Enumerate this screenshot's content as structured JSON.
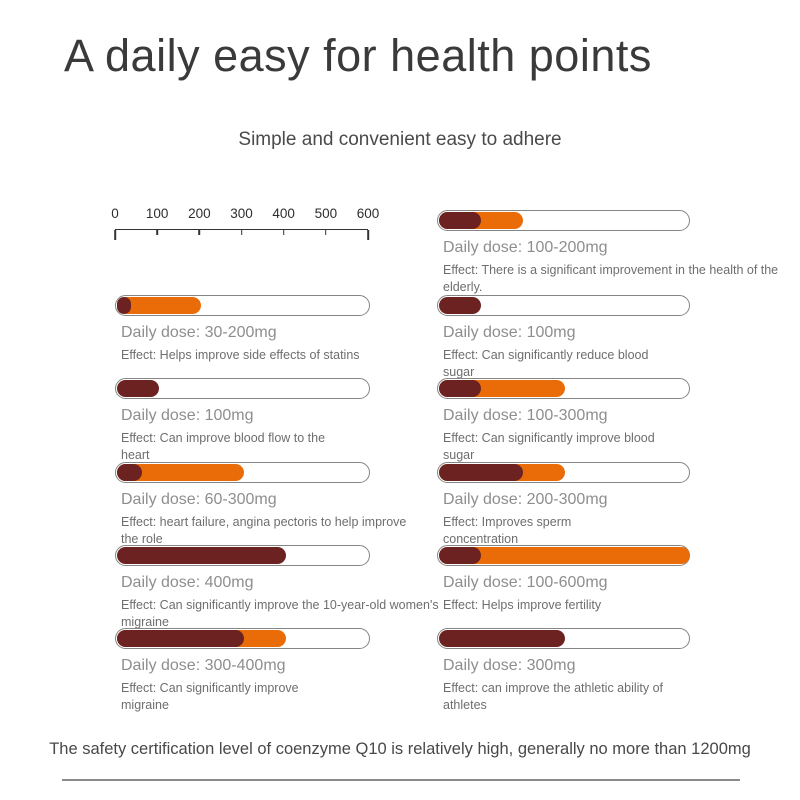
{
  "title": "A daily easy for health points",
  "subtitle": "Simple and convenient easy to adhere",
  "footer": "The safety certification level of coenzyme Q10 is relatively high, generally no more than 1200mg",
  "colors": {
    "min_segment": "#6b2220",
    "range_segment": "#e96c08",
    "track_border": "#858585",
    "title_text": "#3a3a3a",
    "dose_label_text": "#8e8e8e",
    "effect_text": "#6e6e6e"
  },
  "chart_data": {
    "type": "bar",
    "title": "A daily easy for health points",
    "subtitle": "Simple and convenient easy to adhere",
    "unit": "mg",
    "axis": {
      "min": 0,
      "max": 600,
      "ticks": [
        "0",
        "100",
        "200",
        "300",
        "400",
        "500",
        "600"
      ]
    },
    "legend": "dark segment = minimum dose, orange segment = dose range up to maximum",
    "columns": {
      "left": [
        {
          "dose_label": "Daily dose: 30-200mg",
          "min_mg": 30,
          "max_mg": 200,
          "effect_lines": [
            "Effect: Helps improve side effects of statins"
          ]
        },
        {
          "dose_label": "Daily dose: 100mg",
          "min_mg": 100,
          "max_mg": 100,
          "effect_lines": [
            "Effect: Can improve blood flow to the",
            "heart"
          ]
        },
        {
          "dose_label": "Daily dose: 60-300mg",
          "min_mg": 60,
          "max_mg": 300,
          "effect_lines": [
            "Effect: heart failure, angina pectoris to help improve",
            "the role"
          ]
        },
        {
          "dose_label": "Daily dose: 400mg",
          "min_mg": 400,
          "max_mg": 400,
          "effect_lines": [
            "Effect: Can significantly improve the 10-year-old women's",
            "migraine"
          ]
        },
        {
          "dose_label": "Daily dose: 300-400mg",
          "min_mg": 300,
          "max_mg": 400,
          "effect_lines": [
            "Effect: Can significantly improve",
            "migraine"
          ]
        }
      ],
      "right": [
        {
          "dose_label": "Daily dose: 100-200mg",
          "min_mg": 100,
          "max_mg": 200,
          "effect_lines": [
            "Effect: There is a significant improvement in the health of the",
            "elderly."
          ]
        },
        {
          "dose_label": "Daily dose: 100mg",
          "min_mg": 100,
          "max_mg": 100,
          "effect_lines": [
            "Effect: Can significantly reduce blood",
            "sugar"
          ]
        },
        {
          "dose_label": "Daily dose: 100-300mg",
          "min_mg": 100,
          "max_mg": 300,
          "effect_lines": [
            "Effect: Can significantly improve blood",
            "sugar"
          ]
        },
        {
          "dose_label": "Daily dose: 200-300mg",
          "min_mg": 200,
          "max_mg": 300,
          "effect_lines": [
            "Effect: Improves sperm",
            "concentration"
          ]
        },
        {
          "dose_label": "Daily dose: 100-600mg",
          "min_mg": 100,
          "max_mg": 600,
          "effect_lines": [
            "Effect: Helps improve fertility"
          ]
        },
        {
          "dose_label": "Daily dose: 300mg",
          "min_mg": 300,
          "max_mg": 300,
          "effect_lines": [
            "Effect: can improve the athletic ability of",
            "athletes"
          ]
        }
      ]
    }
  }
}
